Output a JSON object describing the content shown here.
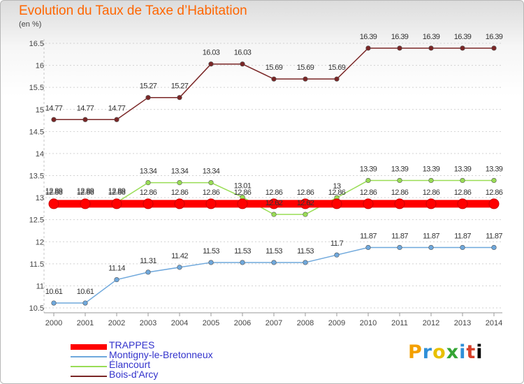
{
  "header": {
    "title": "Evolution du Taux de Taxe d’Habitation",
    "unit": "(en %)"
  },
  "logo": {
    "text": "Proxiti",
    "letters": [
      "P",
      "r",
      "o",
      "x",
      "i",
      "t",
      "i"
    ]
  },
  "chart_data": {
    "type": "line",
    "title": "Evolution du Taux de Taxe d’Habitation",
    "ylabel": "(en %)",
    "xlabel": "",
    "ylim": [
      10.5,
      16.5
    ],
    "yticks": [
      10.5,
      11,
      11.5,
      12,
      12.5,
      13,
      13.5,
      14,
      14.5,
      15,
      15.5,
      16,
      16.5
    ],
    "ytick_labels": [
      "10.5",
      "11",
      "11.5",
      "12",
      "12.5",
      "13",
      "13.5",
      "14",
      "14.5",
      "15",
      "15.5",
      "16",
      "16.5"
    ],
    "x": [
      "2000",
      "2001",
      "2002",
      "2003",
      "2004",
      "2005",
      "2006",
      "2007",
      "2008",
      "2009",
      "2010",
      "2011",
      "2012",
      "2013",
      "2014"
    ],
    "grid": "horizontal dashed",
    "legend_position": "bottom-left",
    "series": [
      {
        "name": "TRAPPES",
        "color": "#ff0000",
        "values": [
          12.86,
          12.86,
          12.86,
          12.86,
          12.86,
          12.86,
          12.86,
          12.86,
          12.86,
          12.86,
          12.86,
          12.86,
          12.86,
          12.86,
          12.86
        ],
        "labels": [
          "12.86",
          "12.86",
          "12.86",
          "12.86",
          "12.86",
          "12.86",
          "12.86",
          "12.86",
          "12.86",
          "12.86",
          "12.86",
          "12.86",
          "12.86",
          "12.86",
          "12.86"
        ]
      },
      {
        "name": "Montigny-le-Bretonneux",
        "color": "#6fa8dc",
        "values": [
          10.61,
          10.61,
          11.14,
          11.31,
          11.42,
          11.53,
          11.53,
          11.53,
          11.53,
          11.7,
          11.87,
          11.87,
          11.87,
          11.87,
          11.87
        ],
        "labels": [
          "10.61",
          "10.61",
          "11.14",
          "11.31",
          "11.42",
          "11.53",
          "11.53",
          "11.53",
          "11.53",
          "11.7",
          "11.87",
          "11.87",
          "11.87",
          "11.87",
          "11.87"
        ]
      },
      {
        "name": "Élancourt",
        "color": "#99dd55",
        "values": [
          12.89,
          12.89,
          12.89,
          13.34,
          13.34,
          13.34,
          13.01,
          12.62,
          12.62,
          13.0,
          13.39,
          13.39,
          13.39,
          13.39,
          13.39
        ],
        "labels": [
          "12.89",
          "12.89",
          "12.89",
          "13.34",
          "13.34",
          "13.34",
          "13.01",
          "12.62",
          "12.62",
          "13",
          "13.39",
          "13.39",
          "13.39",
          "13.39",
          "13.39"
        ]
      },
      {
        "name": "Bois-d'Arcy",
        "color": "#7a2626",
        "values": [
          14.77,
          14.77,
          14.77,
          15.27,
          15.27,
          16.03,
          16.03,
          15.69,
          15.69,
          15.69,
          16.39,
          16.39,
          16.39,
          16.39,
          16.39
        ],
        "labels": [
          "14.77",
          "14.77",
          "14.77",
          "15.27",
          "15.27",
          "16.03",
          "16.03",
          "15.69",
          "15.69",
          "15.69",
          "16.39",
          "16.39",
          "16.39",
          "16.39",
          "16.39"
        ]
      }
    ]
  }
}
